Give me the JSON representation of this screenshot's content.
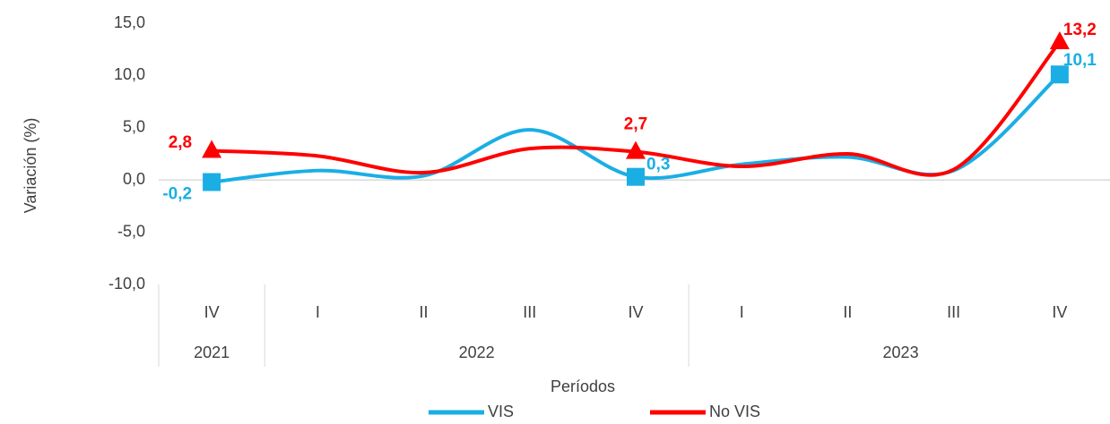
{
  "chart_data": {
    "type": "line",
    "y_label": "Variación (%)",
    "x_label": "Períodos",
    "categories": [
      "IV",
      "I",
      "II",
      "III",
      "IV",
      "I",
      "II",
      "III",
      "IV"
    ],
    "groups": [
      {
        "label": "2021",
        "count": 1
      },
      {
        "label": "2022",
        "count": 4
      },
      {
        "label": "2023",
        "count": 4
      }
    ],
    "series": [
      {
        "name": "VIS",
        "color": "#1aaee5",
        "marker": "square",
        "values": [
          -0.2,
          0.9,
          0.4,
          4.8,
          0.3,
          1.5,
          2.2,
          0.9,
          10.1
        ],
        "value_labels": [
          "-0,2",
          null,
          null,
          null,
          "0,3",
          null,
          null,
          null,
          "10,1"
        ]
      },
      {
        "name": "No VIS",
        "color": "#ff0000",
        "marker": "triangle",
        "values": [
          2.8,
          2.3,
          0.7,
          3.0,
          2.7,
          1.3,
          2.5,
          1.0,
          13.2
        ],
        "value_labels": [
          "2,8",
          null,
          null,
          null,
          "2,7",
          null,
          null,
          null,
          "13,2"
        ]
      }
    ],
    "ylim": [
      -10,
      15
    ],
    "yticks": [
      {
        "value": -10,
        "label": "-10,0"
      },
      {
        "value": -5,
        "label": "-5,0"
      },
      {
        "value": 0,
        "label": "0,0"
      },
      {
        "value": 5,
        "label": "5,0"
      },
      {
        "value": 10,
        "label": "10,0"
      },
      {
        "value": 15,
        "label": "15,0"
      }
    ],
    "legend": "bottom"
  }
}
